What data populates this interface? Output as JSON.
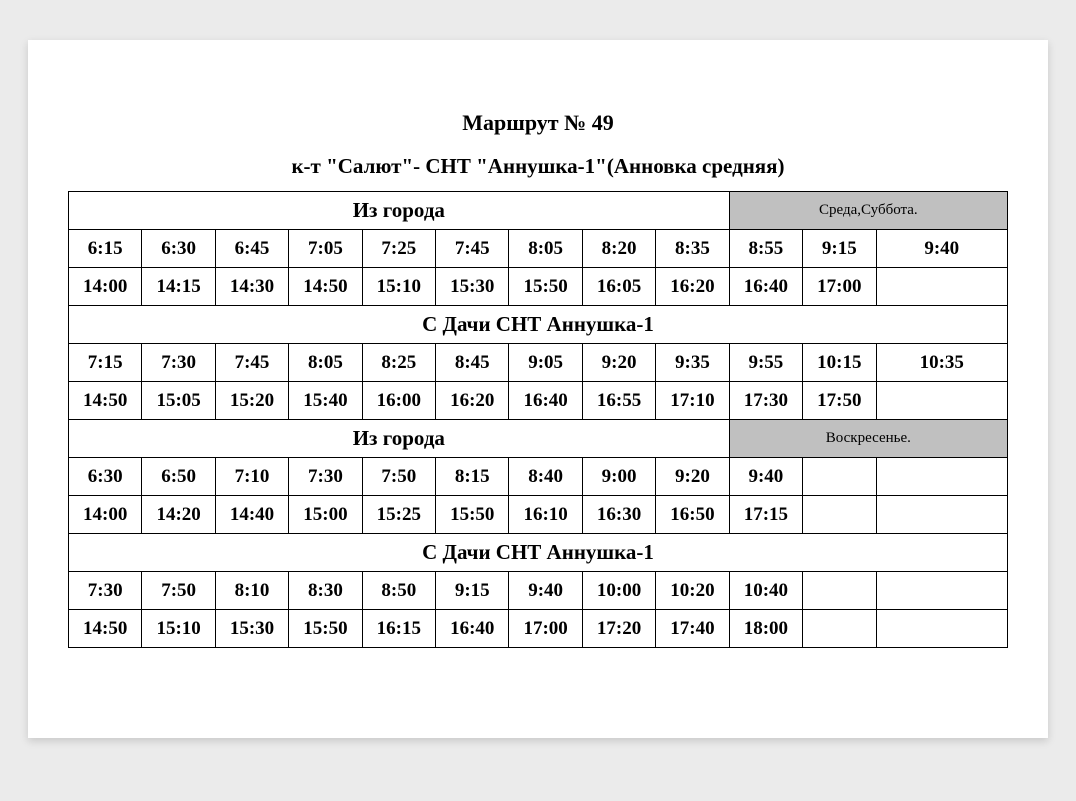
{
  "title": "Маршрут № 49",
  "subtitle": "к-т \"Салют\"- СНТ \"Аннушка-1\"(Анновка средняя)",
  "colors": {
    "page_bg": "#ffffff",
    "body_bg": "#ebebeb",
    "border": "#000000",
    "header_gray": "#c0c0c0",
    "text": "#000000"
  },
  "table": {
    "columns": 12,
    "col_widths_pct": [
      7.8,
      7.8,
      7.8,
      7.8,
      7.8,
      7.8,
      7.8,
      7.8,
      7.8,
      7.8,
      7.8,
      14.2
    ],
    "sections": [
      {
        "header_left": "Из города",
        "header_left_span": 9,
        "header_right": "Среда,Суббота.",
        "header_right_span": 3,
        "rows": [
          [
            "6:15",
            "6:30",
            "6:45",
            "7:05",
            "7:25",
            "7:45",
            "8:05",
            "8:20",
            "8:35",
            "8:55",
            "9:15",
            "9:40"
          ],
          [
            "14:00",
            "14:15",
            "14:30",
            "14:50",
            "15:10",
            "15:30",
            "15:50",
            "16:05",
            "16:20",
            "16:40",
            "17:00",
            ""
          ]
        ]
      },
      {
        "header_left": "С Дачи СНТ Аннушка-1",
        "header_left_span": 12,
        "rows": [
          [
            "7:15",
            "7:30",
            "7:45",
            "8:05",
            "8:25",
            "8:45",
            "9:05",
            "9:20",
            "9:35",
            "9:55",
            "10:15",
            "10:35"
          ],
          [
            "14:50",
            "15:05",
            "15:20",
            "15:40",
            "16:00",
            "16:20",
            "16:40",
            "16:55",
            "17:10",
            "17:30",
            "17:50",
            ""
          ]
        ]
      },
      {
        "header_left": "Из города",
        "header_left_span": 9,
        "header_right": "Воскресенье.",
        "header_right_span": 3,
        "rows": [
          [
            "6:30",
            "6:50",
            "7:10",
            "7:30",
            "7:50",
            "8:15",
            "8:40",
            "9:00",
            "9:20",
            "9:40",
            "",
            ""
          ],
          [
            "14:00",
            "14:20",
            "14:40",
            "15:00",
            "15:25",
            "15:50",
            "16:10",
            "16:30",
            "16:50",
            "17:15",
            "",
            ""
          ]
        ]
      },
      {
        "header_left": "С Дачи СНТ Аннушка-1",
        "header_left_span": 12,
        "rows": [
          [
            "7:30",
            "7:50",
            "8:10",
            "8:30",
            "8:50",
            "9:15",
            "9:40",
            "10:00",
            "10:20",
            "10:40",
            "",
            ""
          ],
          [
            "14:50",
            "15:10",
            "15:30",
            "15:50",
            "16:15",
            "16:40",
            "17:00",
            "17:20",
            "17:40",
            "18:00",
            "",
            ""
          ]
        ]
      }
    ]
  }
}
